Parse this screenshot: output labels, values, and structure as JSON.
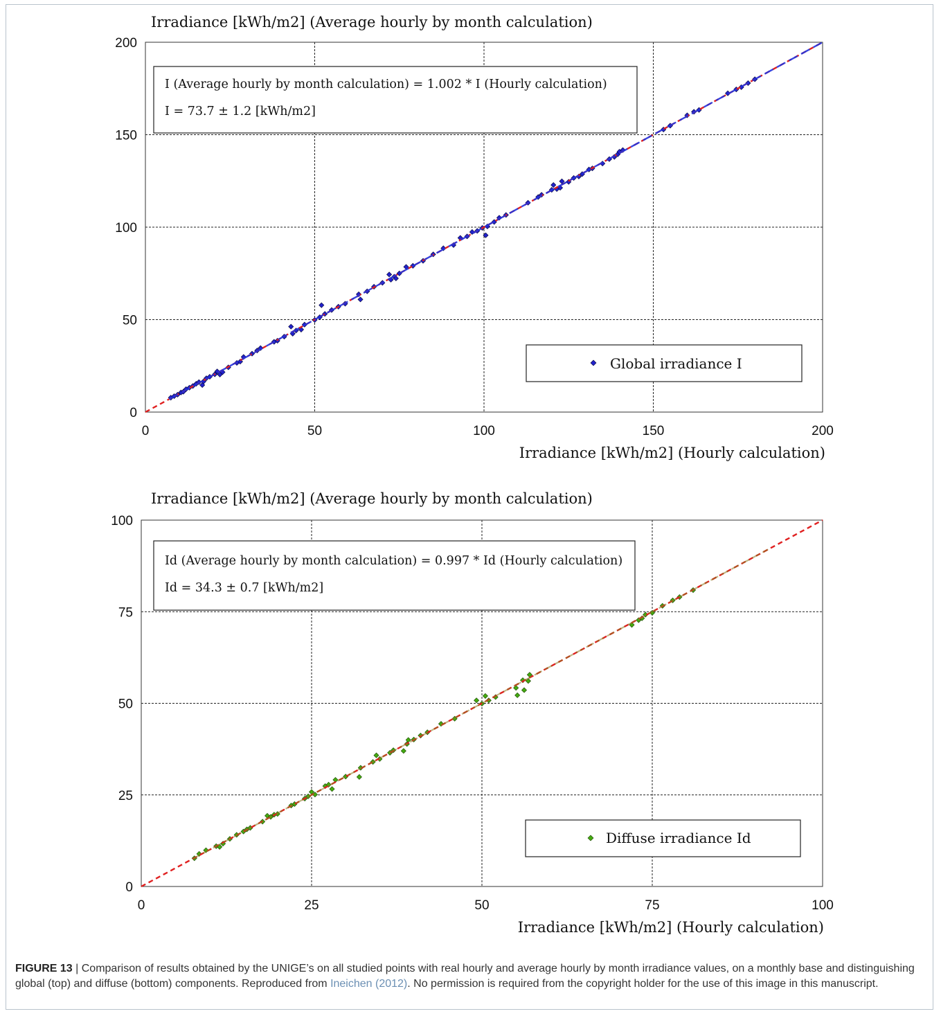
{
  "figure": {
    "label": "FIGURE 13",
    "caption_before": " | Comparison of results obtained by the UNIGE’s on all studied points with real hourly and average hourly by month irradiance values, on a monthly base and distinguishing global (top) and diffuse (bottom) components. Reproduced from ",
    "citation": "Ineichen (2012)",
    "caption_after": ". No permission is required from the copyright holder for the use of this image in this manuscript."
  },
  "chart_data": [
    {
      "type": "scatter",
      "ylabel": "Irradiance [kWh/m2] (Average hourly by month calculation)",
      "xlabel": "Irradiance [kWh/m2] (Hourly calculation)",
      "xlim": [
        0,
        200
      ],
      "ylim": [
        0,
        200
      ],
      "xticks": [
        0,
        50,
        100,
        150,
        200
      ],
      "yticks": [
        0,
        50,
        100,
        150,
        200
      ],
      "grid": true,
      "annotation_line1": "I (Average hourly by month calculation) = 1.002 * I (Hourly calculation)",
      "annotation_line2": "I = 73.7 ± 1.2 [kWh/m2]",
      "legend_position": "bottom-right",
      "series": [
        {
          "name": "Global irradiance I",
          "marker": "diamond",
          "color": "#2222cc",
          "points": [
            [
              7.5,
              7.8
            ],
            [
              8.5,
              8.6
            ],
            [
              9.5,
              9.4
            ],
            [
              10.5,
              10.6
            ],
            [
              11.2,
              11.0
            ],
            [
              12,
              12.4
            ],
            [
              13,
              13.2
            ],
            [
              14,
              14.1
            ],
            [
              15,
              15.3
            ],
            [
              15.8,
              16.2
            ],
            [
              16.8,
              14.6
            ],
            [
              17.2,
              16.6
            ],
            [
              18,
              18.3
            ],
            [
              19,
              19.1
            ],
            [
              20.5,
              20.4
            ],
            [
              21.2,
              22.0
            ],
            [
              22,
              20.3
            ],
            [
              22.8,
              21.6
            ],
            [
              24.5,
              24.2
            ],
            [
              27,
              26.6
            ],
            [
              28,
              27.3
            ],
            [
              29,
              29.8
            ],
            [
              31.5,
              31.6
            ],
            [
              33,
              33.3
            ],
            [
              34,
              34.6
            ],
            [
              38,
              38.0
            ],
            [
              39,
              38.6
            ],
            [
              41,
              40.8
            ],
            [
              43,
              46.2
            ],
            [
              43.5,
              42.4
            ],
            [
              44.5,
              44.1
            ],
            [
              46,
              44.6
            ],
            [
              47,
              47.3
            ],
            [
              50,
              49.8
            ],
            [
              51.5,
              51.3
            ],
            [
              52,
              57.8
            ],
            [
              53,
              53.1
            ],
            [
              55,
              55.2
            ],
            [
              57,
              57.0
            ],
            [
              59,
              58.6
            ],
            [
              63,
              63.7
            ],
            [
              63.5,
              60.9
            ],
            [
              65.5,
              65.3
            ],
            [
              67.5,
              67.8
            ],
            [
              70,
              69.9
            ],
            [
              72,
              74.4
            ],
            [
              72.5,
              71.6
            ],
            [
              73.5,
              73.2
            ],
            [
              74,
              72.3
            ],
            [
              75,
              75.0
            ],
            [
              77,
              78.5
            ],
            [
              79,
              79.1
            ],
            [
              82,
              81.8
            ],
            [
              85,
              85.3
            ],
            [
              88,
              88.6
            ],
            [
              91,
              90.3
            ],
            [
              93,
              94.2
            ],
            [
              95,
              95.0
            ],
            [
              96.5,
              97.4
            ],
            [
              98,
              98.0
            ],
            [
              99.5,
              99.6
            ],
            [
              100.5,
              95.6
            ],
            [
              101,
              100.4
            ],
            [
              103,
              102.8
            ],
            [
              104.5,
              105.1
            ],
            [
              106.5,
              106.6
            ],
            [
              113,
              113.2
            ],
            [
              116,
              116.3
            ],
            [
              117,
              117.5
            ],
            [
              120,
              120.2
            ],
            [
              120.5,
              122.8
            ],
            [
              121.5,
              120.6
            ],
            [
              122.5,
              121.3
            ],
            [
              123,
              124.8
            ],
            [
              125,
              124.5
            ],
            [
              126.5,
              126.6
            ],
            [
              128,
              127.4
            ],
            [
              129,
              128.7
            ],
            [
              131,
              131.2
            ],
            [
              132,
              131.8
            ],
            [
              135,
              134.4
            ],
            [
              137,
              136.8
            ],
            [
              138.5,
              138.0
            ],
            [
              139.5,
              139.4
            ],
            [
              140,
              140.8
            ],
            [
              141,
              141.7
            ],
            [
              153,
              152.8
            ],
            [
              155,
              154.9
            ],
            [
              160,
              160.5
            ],
            [
              162,
              162.4
            ],
            [
              163.5,
              163.4
            ],
            [
              172,
              172.4
            ],
            [
              174.5,
              174.5
            ],
            [
              176,
              175.7
            ],
            [
              178,
              177.9
            ],
            [
              180,
              180.0
            ]
          ]
        }
      ]
    },
    {
      "type": "scatter",
      "ylabel": "Irradiance [kWh/m2] (Average hourly by month calculation)",
      "xlabel": "Irradiance [kWh/m2] (Hourly calculation)",
      "xlim": [
        0,
        100
      ],
      "ylim": [
        0,
        100
      ],
      "xticks": [
        0,
        25,
        50,
        75,
        100
      ],
      "yticks": [
        0,
        25,
        50,
        75,
        100
      ],
      "grid": true,
      "annotation_line1": "Id (Average hourly by month calculation) = 0.997 * Id (Hourly calculation)",
      "annotation_line2": "Id = 34.3 ± 0.7 [kWh/m2]",
      "legend_position": "bottom-right",
      "series": [
        {
          "name": "Diffuse irradiance Id",
          "marker": "diamond",
          "color": "#44aa11",
          "points": [
            [
              7.8,
              7.7
            ],
            [
              8.5,
              8.9
            ],
            [
              9.5,
              9.9
            ],
            [
              11,
              11.0
            ],
            [
              11.5,
              10.8
            ],
            [
              12,
              11.7
            ],
            [
              13,
              13.0
            ],
            [
              14,
              14.1
            ],
            [
              15,
              15.0
            ],
            [
              15.5,
              15.6
            ],
            [
              16,
              16.0
            ],
            [
              17.8,
              17.7
            ],
            [
              18.5,
              19.3
            ],
            [
              19,
              19.0
            ],
            [
              19.5,
              19.6
            ],
            [
              20,
              19.8
            ],
            [
              22,
              22.1
            ],
            [
              22.5,
              22.5
            ],
            [
              24,
              24.0
            ],
            [
              24.5,
              24.6
            ],
            [
              25,
              25.8
            ],
            [
              25.5,
              25.1
            ],
            [
              27,
              27.4
            ],
            [
              27.5,
              27.8
            ],
            [
              28,
              26.6
            ],
            [
              28.5,
              29.1
            ],
            [
              30,
              30.0
            ],
            [
              32,
              29.9
            ],
            [
              32.2,
              32.4
            ],
            [
              34,
              34.0
            ],
            [
              34.5,
              35.8
            ],
            [
              35,
              34.8
            ],
            [
              36.5,
              36.5
            ],
            [
              37,
              37.2
            ],
            [
              38.5,
              37.0
            ],
            [
              39,
              38.9
            ],
            [
              39.2,
              40.0
            ],
            [
              40,
              40.1
            ],
            [
              41,
              41.2
            ],
            [
              42,
              42.1
            ],
            [
              44,
              44.4
            ],
            [
              46,
              45.8
            ],
            [
              49.2,
              50.8
            ],
            [
              50,
              49.9
            ],
            [
              50.5,
              52.0
            ],
            [
              51,
              50.8
            ],
            [
              52,
              51.7
            ],
            [
              55,
              54.2
            ],
            [
              55.2,
              52.2
            ],
            [
              56,
              56.3
            ],
            [
              56.2,
              53.6
            ],
            [
              56.8,
              56.1
            ],
            [
              57,
              57.8
            ],
            [
              72,
              71.4
            ],
            [
              73,
              72.7
            ],
            [
              73.5,
              73.2
            ],
            [
              74,
              74.2
            ],
            [
              75,
              74.7
            ],
            [
              76.5,
              76.6
            ],
            [
              78,
              78.1
            ],
            [
              79,
              79.0
            ],
            [
              81,
              80.9
            ]
          ]
        }
      ]
    }
  ]
}
